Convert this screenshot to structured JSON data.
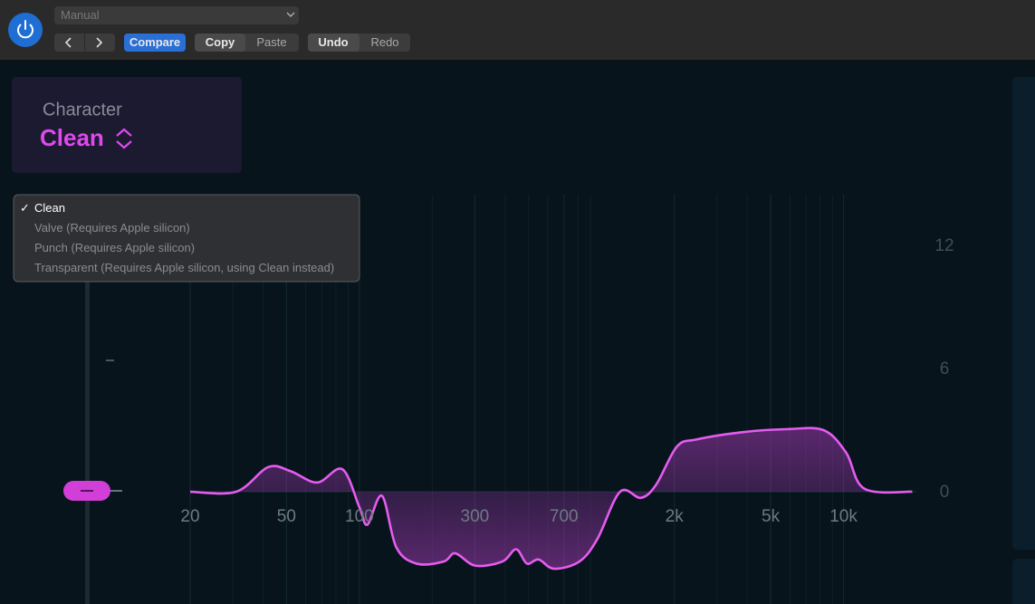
{
  "toolbar": {
    "preset": "Manual",
    "compare": "Compare",
    "copy": "Copy",
    "paste": "Paste",
    "undo": "Undo",
    "redo": "Redo"
  },
  "character": {
    "label": "Character",
    "value": "Clean"
  },
  "menu": {
    "check": "✓",
    "items": [
      "Clean",
      "Valve (Requires Apple silicon)",
      "Punch (Requires Apple silicon)",
      "Transparent (Requires Apple silicon, using Clean instead)"
    ]
  },
  "eq": {
    "type": "line",
    "xscale": "log",
    "color": "#e65cf0",
    "xlim": [
      20,
      20000
    ],
    "ylim": [
      -4,
      12
    ],
    "xticks": [
      20,
      50,
      100,
      300,
      700,
      {
        "value": 2000,
        "label": "2k"
      },
      {
        "value": 5000,
        "label": "5k"
      },
      {
        "value": 10000,
        "label": "10k"
      }
    ],
    "yticks": [
      0,
      6,
      12
    ],
    "x": [
      20,
      31,
      42,
      52,
      67,
      85,
      100,
      108,
      124,
      142,
      172,
      223,
      249,
      301,
      390,
      444,
      492,
      550,
      637,
      811,
      962,
      1194,
      1455,
      1684,
      2051,
      2477,
      3811,
      5861,
      8270,
      10260,
      12190,
      19230
    ],
    "y": [
      0,
      0,
      1.2,
      1.0,
      0.45,
      1.1,
      -0.75,
      -1.6,
      -0.2,
      -2.7,
      -3.5,
      -3.4,
      -3.0,
      -3.6,
      -3.4,
      -2.8,
      -3.5,
      -3.3,
      -3.75,
      -3.4,
      -2.3,
      0,
      -0.3,
      0.35,
      2.2,
      2.55,
      2.9,
      3.05,
      3.0,
      1.9,
      0.15,
      0
    ]
  }
}
